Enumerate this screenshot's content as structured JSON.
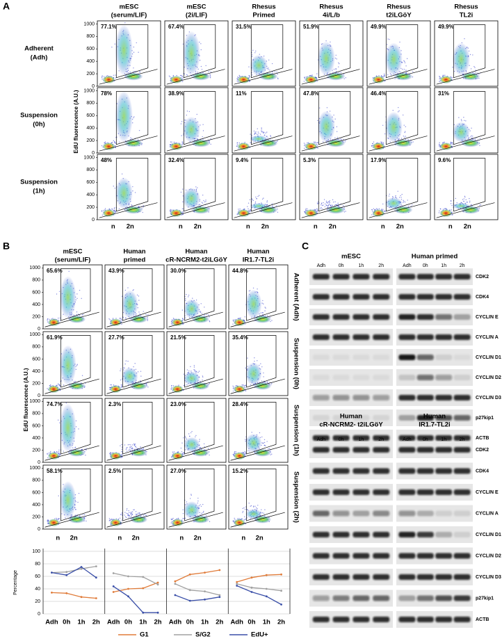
{
  "panel_a": {
    "label": "A",
    "y_axis_label": "EdU fluorescence (A.U.)",
    "ylim": [
      0,
      1050
    ],
    "yticks": [
      0,
      200,
      400,
      600,
      800,
      1000
    ],
    "x_ticks": [
      "n",
      "2n"
    ],
    "columns": [
      [
        "mESC",
        "(serum/LIF)"
      ],
      [
        "mESC",
        "(2i/LIF)"
      ],
      [
        "Rhesus",
        "Primed"
      ],
      [
        "Rhesus",
        "4i/L/b"
      ],
      [
        "Rhesus",
        "t2iLGöY"
      ],
      [
        "Rhesus",
        "TL2i"
      ]
    ],
    "rows": [
      [
        "Adherent",
        "(Adh)"
      ],
      [
        "Suspension",
        "(0h)"
      ],
      [
        "Suspension",
        "(1h)"
      ]
    ],
    "percentages": [
      [
        "77.1%",
        "67.4%",
        "31.5%",
        "51.9%",
        "49.9%",
        "49.9%"
      ],
      [
        "78%",
        "38.9%",
        "11%",
        "47.8%",
        "46.4%",
        "31%"
      ],
      [
        "48%",
        "32.4%",
        "9.4%",
        "5.3%",
        "17.9%",
        "9.6%"
      ]
    ]
  },
  "panel_b": {
    "label": "B",
    "y_axis_label": "EdU fluorescence (A.U.)",
    "ylim": [
      0,
      1050
    ],
    "yticks": [
      0,
      200,
      400,
      600,
      800,
      1000
    ],
    "x_ticks": [
      "n",
      "2n"
    ],
    "columns": [
      [
        "mESC",
        "(serum/LIF)"
      ],
      [
        "Human",
        "primed"
      ],
      [
        "Human",
        "cR-NCRM2-t2iLGöY"
      ],
      [
        "Human",
        "IR1.7-TL2i"
      ]
    ],
    "rows": [
      "Adherent (Adh)",
      "Suspension (0h)",
      "Suspension (1h)",
      "Suspension (2h)"
    ],
    "percentages": [
      [
        "65.6%",
        "43.9%",
        "30.0%",
        "44.8%"
      ],
      [
        "61.9%",
        "27.7%",
        "21.5%",
        "35.4%"
      ],
      [
        "74.7%",
        "2.3%",
        "23.0%",
        "28.4%"
      ],
      [
        "58.1%",
        "2.5%",
        "27.0%",
        "15.2%"
      ]
    ]
  },
  "chart_data": {
    "type": "line",
    "ylabel": "Percentage",
    "categories": [
      "Adh",
      "0h",
      "1h",
      "2h"
    ],
    "ylim": [
      0,
      100
    ],
    "yticks": [
      0,
      20,
      40,
      60,
      80,
      100
    ],
    "grid": true,
    "series": [
      {
        "name": "G1",
        "color": "#e07b39",
        "values": [
          [
            34,
            33,
            27,
            25
          ],
          [
            35,
            40,
            41,
            50
          ],
          [
            52,
            63,
            66,
            70
          ],
          [
            51,
            58,
            62,
            63
          ]
        ]
      },
      {
        "name": "S/G2",
        "color": "#a0a0a0",
        "values": [
          [
            66,
            67,
            72,
            76
          ],
          [
            65,
            60,
            59,
            47
          ],
          [
            48,
            38,
            36,
            30
          ],
          [
            48,
            42,
            40,
            37
          ]
        ]
      },
      {
        "name": "EdU+",
        "color": "#3a4fa8",
        "values": [
          [
            66,
            62,
            75,
            58
          ],
          [
            44,
            28,
            2,
            2
          ],
          [
            30,
            21,
            23,
            27
          ],
          [
            45,
            35,
            28,
            15
          ]
        ]
      }
    ]
  },
  "panel_c": {
    "label": "C",
    "lanes": [
      "Adh",
      "0h",
      "1h",
      "2h"
    ],
    "top": {
      "titles": [
        [
          "mESC"
        ],
        [
          "Human  primed"
        ]
      ],
      "proteins": [
        "CDK2",
        "CDK4",
        "CYCLIN E",
        "CYCLIN A",
        "CYCLIN D1",
        "CYCLIN D2",
        "CYCLIN D3",
        "p27kip1",
        "ACTB"
      ]
    },
    "bottom": {
      "titles": [
        [
          "Human",
          "cR-NCRM2- t2iLGöY"
        ],
        [
          "Human",
          "IR1.7-TL2i"
        ]
      ],
      "proteins": [
        "CDK2",
        "CDK4",
        "CYCLIN E",
        "CYCLIN A",
        "CYCLIN D1",
        "CYCLIN D2",
        "CYCLIN D3",
        "p27kip1",
        "ACTB"
      ]
    }
  }
}
